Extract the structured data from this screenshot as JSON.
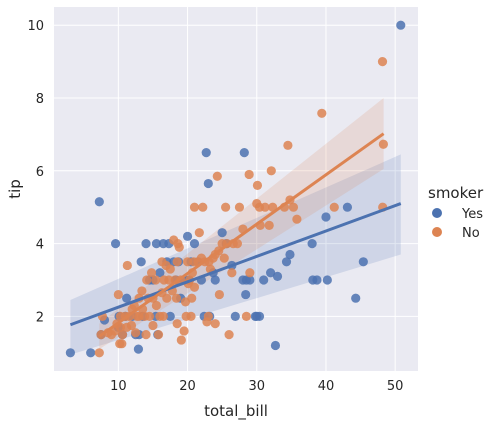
{
  "chart_data": {
    "type": "scatter",
    "title": "",
    "xlabel": "total_bill",
    "ylabel": "tip",
    "xlim": [
      0.7,
      53.3
    ],
    "ylim": [
      0.5,
      10.5
    ],
    "xticks": [
      10,
      20,
      30,
      40,
      50
    ],
    "yticks": [
      2,
      4,
      6,
      8,
      10
    ],
    "grid": true,
    "background": "#eaeaf2",
    "legend": {
      "title": "smoker",
      "placement": "right",
      "entries": [
        "Yes",
        "No"
      ]
    },
    "series": [
      {
        "name": "Yes",
        "color": "#4c72b0",
        "regression": {
          "x": [
            3.07,
            50.81
          ],
          "y": [
            1.77,
            5.1
          ]
        },
        "ci_lower_y": [
          0.95,
          3.7
        ],
        "ci_upper_y": [
          2.45,
          6.45
        ],
        "points": [
          [
            3.07,
            1.0
          ],
          [
            6.0,
            1.0
          ],
          [
            7.25,
            5.15
          ],
          [
            7.5,
            1.5
          ],
          [
            8.0,
            1.9
          ],
          [
            9.6,
            4.0
          ],
          [
            10.0,
            1.7
          ],
          [
            10.1,
            2.0
          ],
          [
            10.6,
            1.5
          ],
          [
            11.0,
            2.0
          ],
          [
            11.2,
            2.5
          ],
          [
            12.0,
            2.0
          ],
          [
            12.5,
            1.5
          ],
          [
            12.9,
            1.1
          ],
          [
            13.0,
            1.5
          ],
          [
            13.3,
            3.5
          ],
          [
            13.5,
            2.0
          ],
          [
            14.0,
            4.0
          ],
          [
            14.5,
            3.0
          ],
          [
            15.0,
            3.0
          ],
          [
            15.4,
            2.0
          ],
          [
            15.5,
            4.0
          ],
          [
            15.7,
            1.5
          ],
          [
            16.0,
            3.2
          ],
          [
            16.5,
            4.0
          ],
          [
            17.0,
            3.5
          ],
          [
            17.3,
            4.0
          ],
          [
            17.5,
            2.0
          ],
          [
            18.0,
            3.5
          ],
          [
            18.3,
            3.0
          ],
          [
            18.7,
            3.5
          ],
          [
            19.0,
            2.5
          ],
          [
            19.5,
            3.0
          ],
          [
            20.0,
            4.2
          ],
          [
            20.2,
            3.0
          ],
          [
            20.5,
            3.5
          ],
          [
            21.0,
            4.0
          ],
          [
            21.5,
            3.5
          ],
          [
            22.0,
            3.0
          ],
          [
            22.4,
            2.0
          ],
          [
            22.7,
            6.5
          ],
          [
            23.0,
            5.65
          ],
          [
            23.2,
            2.0
          ],
          [
            23.7,
            3.2
          ],
          [
            24.0,
            3.0
          ],
          [
            25.0,
            4.3
          ],
          [
            25.6,
            4.0
          ],
          [
            26.4,
            3.4
          ],
          [
            26.9,
            2.0
          ],
          [
            28.0,
            3.0
          ],
          [
            28.2,
            6.5
          ],
          [
            28.4,
            2.6
          ],
          [
            28.5,
            3.0
          ],
          [
            29.0,
            3.0
          ],
          [
            29.8,
            2.0
          ],
          [
            30.0,
            2.0
          ],
          [
            30.4,
            2.0
          ],
          [
            31.0,
            3.0
          ],
          [
            32.0,
            3.2
          ],
          [
            32.7,
            1.2
          ],
          [
            33.0,
            3.1
          ],
          [
            34.3,
            3.5
          ],
          [
            34.8,
            3.7
          ],
          [
            38.1,
            3.0
          ],
          [
            38.7,
            3.0
          ],
          [
            38.0,
            4.0
          ],
          [
            40.0,
            4.73
          ],
          [
            40.2,
            3.0
          ],
          [
            43.1,
            5.0
          ],
          [
            44.3,
            2.5
          ],
          [
            45.4,
            3.5
          ],
          [
            50.81,
            10.0
          ]
        ]
      },
      {
        "name": "No",
        "color": "#dd8452",
        "regression": {
          "x": [
            7.25,
            48.33
          ],
          "y": [
            1.45,
            7.02
          ]
        },
        "ci_lower_y": [
          1.1,
          6.05
        ],
        "ci_upper_y": [
          1.8,
          8.0
        ],
        "points": [
          [
            7.25,
            1.0
          ],
          [
            7.5,
            1.5
          ],
          [
            7.7,
            2.0
          ],
          [
            8.5,
            1.55
          ],
          [
            9.0,
            1.5
          ],
          [
            9.5,
            1.6
          ],
          [
            9.8,
            1.8
          ],
          [
            10.0,
            2.6
          ],
          [
            10.2,
            1.25
          ],
          [
            10.3,
            1.7
          ],
          [
            10.3,
            2.0
          ],
          [
            10.5,
            1.25
          ],
          [
            10.6,
            1.5
          ],
          [
            11.0,
            2.0
          ],
          [
            11.2,
            1.7
          ],
          [
            11.3,
            3.4
          ],
          [
            11.6,
            2.0
          ],
          [
            11.9,
            1.75
          ],
          [
            12.0,
            2.2
          ],
          [
            12.3,
            2.3
          ],
          [
            12.5,
            1.55
          ],
          [
            12.7,
            2.0
          ],
          [
            13.0,
            2.5
          ],
          [
            13.0,
            2.0
          ],
          [
            13.4,
            2.7
          ],
          [
            13.5,
            2.2
          ],
          [
            13.8,
            2.0
          ],
          [
            14.0,
            1.5
          ],
          [
            14.1,
            3.0
          ],
          [
            14.3,
            2.5
          ],
          [
            14.5,
            2.0
          ],
          [
            14.8,
            3.2
          ],
          [
            15.0,
            2.5
          ],
          [
            15.0,
            1.75
          ],
          [
            15.4,
            3.0
          ],
          [
            15.5,
            2.3
          ],
          [
            15.8,
            1.5
          ],
          [
            16.0,
            2.0
          ],
          [
            16.3,
            2.65
          ],
          [
            16.3,
            3.5
          ],
          [
            16.5,
            2.0
          ],
          [
            16.6,
            3.0
          ],
          [
            16.9,
            3.4
          ],
          [
            17.0,
            2.5
          ],
          [
            17.3,
            3.0
          ],
          [
            17.5,
            3.3
          ],
          [
            17.8,
            2.7
          ],
          [
            18.0,
            4.1
          ],
          [
            18.2,
            3.0
          ],
          [
            18.4,
            2.5
          ],
          [
            18.5,
            3.5
          ],
          [
            18.5,
            1.8
          ],
          [
            18.6,
            4.0
          ],
          [
            18.8,
            3.9
          ],
          [
            19.0,
            3.0
          ],
          [
            19.1,
            1.35
          ],
          [
            19.5,
            1.6
          ],
          [
            19.7,
            2.4
          ],
          [
            19.8,
            2.0
          ],
          [
            20.0,
            3.5
          ],
          [
            20.1,
            2.9
          ],
          [
            20.3,
            3.0
          ],
          [
            20.5,
            2.0
          ],
          [
            20.6,
            2.5
          ],
          [
            20.7,
            3.2
          ],
          [
            20.9,
            3.5
          ],
          [
            21.0,
            5.0
          ],
          [
            21.0,
            2.8
          ],
          [
            21.5,
            3.5
          ],
          [
            21.7,
            4.3
          ],
          [
            22.0,
            3.6
          ],
          [
            22.2,
            5.0
          ],
          [
            22.5,
            3.5
          ],
          [
            22.8,
            1.85
          ],
          [
            23.0,
            2.0
          ],
          [
            23.1,
            3.5
          ],
          [
            23.3,
            3.3
          ],
          [
            23.7,
            3.6
          ],
          [
            24.0,
            3.7
          ],
          [
            24.0,
            1.8
          ],
          [
            24.3,
            5.85
          ],
          [
            24.5,
            3.8
          ],
          [
            24.6,
            2.6
          ],
          [
            25.0,
            4.0
          ],
          [
            25.3,
            3.6
          ],
          [
            25.5,
            5.0
          ],
          [
            25.7,
            4.0
          ],
          [
            26.0,
            1.5
          ],
          [
            26.4,
            3.2
          ],
          [
            26.6,
            4.0
          ],
          [
            27.2,
            4.0
          ],
          [
            27.5,
            5.0
          ],
          [
            28.0,
            4.4
          ],
          [
            28.5,
            2.0
          ],
          [
            28.9,
            5.9
          ],
          [
            29.0,
            3.2
          ],
          [
            30.0,
            5.1
          ],
          [
            30.1,
            5.6
          ],
          [
            30.4,
            5.0
          ],
          [
            30.5,
            4.5
          ],
          [
            31.2,
            5.0
          ],
          [
            31.8,
            4.5
          ],
          [
            32.1,
            6.0
          ],
          [
            32.3,
            5.0
          ],
          [
            34.0,
            5.0
          ],
          [
            34.5,
            6.7
          ],
          [
            34.8,
            5.2
          ],
          [
            35.3,
            5.0
          ],
          [
            35.8,
            4.67
          ],
          [
            39.4,
            7.58
          ],
          [
            41.2,
            5.0
          ],
          [
            48.2,
            5.0
          ],
          [
            48.3,
            6.73
          ],
          [
            48.17,
            9.0
          ]
        ]
      }
    ]
  }
}
